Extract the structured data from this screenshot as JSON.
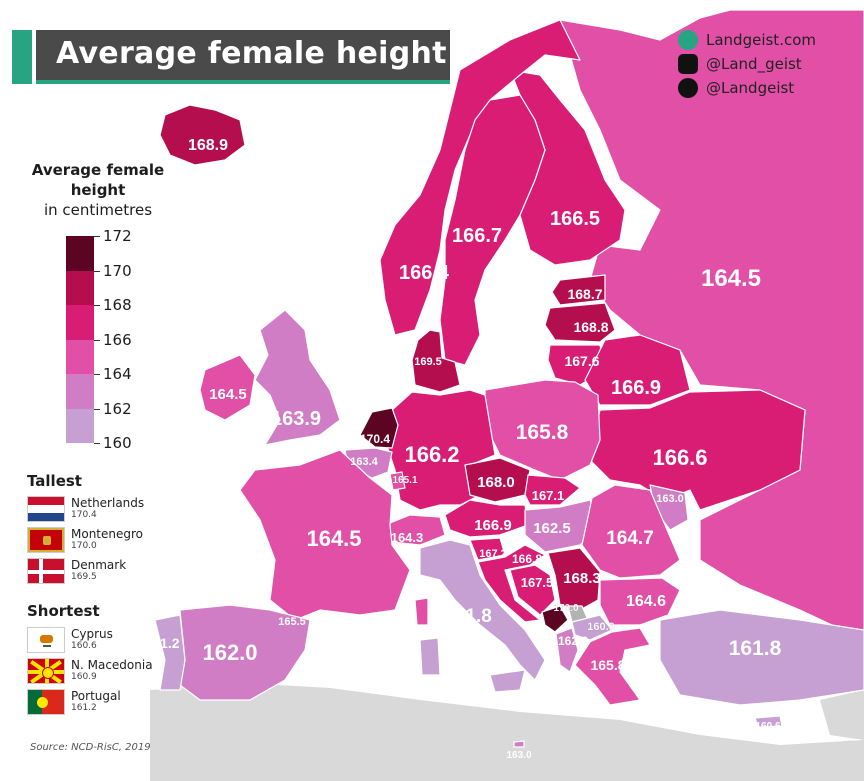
{
  "title": "Average female height",
  "social": [
    {
      "icon": "globe-icon",
      "label": "Landgeist.com"
    },
    {
      "icon": "instagram-icon",
      "label": "@Land_geist"
    },
    {
      "icon": "twitter-icon",
      "label": "@Landgeist"
    }
  ],
  "legend": {
    "title": "Average female height",
    "subtitle": "in centimetres",
    "scale": [
      "172",
      "170",
      "168",
      "166",
      "164",
      "162",
      "160"
    ],
    "colors": [
      "#5c0522",
      "#b50e4e",
      "#d91d75",
      "#e24fa6",
      "#d07dc5",
      "#c69fd3",
      "#e9e3ef"
    ]
  },
  "tallest": {
    "label": "Tallest",
    "items": [
      {
        "country": "Netherlands",
        "value": "170.4",
        "flag": "netherlands"
      },
      {
        "country": "Montenegro",
        "value": "170.0",
        "flag": "montenegro"
      },
      {
        "country": "Denmark",
        "value": "169.5",
        "flag": "denmark"
      }
    ]
  },
  "shortest": {
    "label": "Shortest",
    "items": [
      {
        "country": "Cyprus",
        "value": "160.6",
        "flag": "cyprus"
      },
      {
        "country": "N. Macedonia",
        "value": "160.9",
        "flag": "north-macedonia"
      },
      {
        "country": "Portugal",
        "value": "161.2",
        "flag": "portugal"
      }
    ]
  },
  "source": "Source: NCD-RisC, 2019",
  "colors": {
    "sea": "#ffffff",
    "land_other": "#d9d9d9",
    "title_bg": "#4a4a4a",
    "title_accent": "#27a583",
    "border": "#ffffff"
  },
  "regions": [
    {
      "id": "iceland",
      "label": "168.9",
      "value": 168.9
    },
    {
      "id": "norway",
      "label": "166.4",
      "value": 166.4
    },
    {
      "id": "sweden",
      "label": "166.7",
      "value": 166.7
    },
    {
      "id": "finland",
      "label": "166.5",
      "value": 166.5
    },
    {
      "id": "russia",
      "label": "164.5",
      "value": 164.5
    },
    {
      "id": "estonia",
      "label": "168.7",
      "value": 168.7
    },
    {
      "id": "latvia",
      "label": "168.8",
      "value": 168.8
    },
    {
      "id": "lithuania",
      "label": "167.6",
      "value": 167.6
    },
    {
      "id": "belarus",
      "label": "166.9",
      "value": 166.9
    },
    {
      "id": "denmark",
      "label": "169.5",
      "value": 169.5
    },
    {
      "id": "ireland",
      "label": "164.5",
      "value": 164.5
    },
    {
      "id": "uk",
      "label": "163.9",
      "value": 163.9
    },
    {
      "id": "netherlands",
      "label": "170.4",
      "value": 170.4
    },
    {
      "id": "belgium",
      "label": "163.4",
      "value": 163.4
    },
    {
      "id": "luxembourg",
      "label": "165.1",
      "value": 165.1
    },
    {
      "id": "germany",
      "label": "166.2",
      "value": 166.2
    },
    {
      "id": "poland",
      "label": "165.8",
      "value": 165.8
    },
    {
      "id": "ukraine",
      "label": "166.6",
      "value": 166.6
    },
    {
      "id": "czechia",
      "label": "168.0",
      "value": 168.0
    },
    {
      "id": "slovakia",
      "label": "167.1",
      "value": 167.1
    },
    {
      "id": "moldova",
      "label": "163.0",
      "value": 163.0
    },
    {
      "id": "austria",
      "label": "166.9",
      "value": 166.9
    },
    {
      "id": "hungary",
      "label": "162.5",
      "value": 162.5
    },
    {
      "id": "romania",
      "label": "164.7",
      "value": 164.7
    },
    {
      "id": "switzerland",
      "label": "164.3",
      "value": 164.3
    },
    {
      "id": "france",
      "label": "164.5",
      "value": 164.5
    },
    {
      "id": "slovenia",
      "label": "167.2",
      "value": 167.2
    },
    {
      "id": "croatia",
      "label": "166.8",
      "value": 166.8
    },
    {
      "id": "bosnia",
      "label": "167.5",
      "value": 167.5
    },
    {
      "id": "serbia",
      "label": "168.3",
      "value": 168.3
    },
    {
      "id": "montenegro",
      "label": "170.0",
      "value": 170.0
    },
    {
      "id": "kosovo",
      "label": "",
      "value": null
    },
    {
      "id": "north-macedonia",
      "label": "160.9",
      "value": 160.9
    },
    {
      "id": "bulgaria",
      "label": "164.6",
      "value": 164.6
    },
    {
      "id": "albania",
      "label": "162.2",
      "value": 162.2
    },
    {
      "id": "greece",
      "label": "165.8",
      "value": 165.8
    },
    {
      "id": "italy",
      "label": "161.8",
      "value": 161.8
    },
    {
      "id": "spain",
      "label": "162.0",
      "value": 162.0
    },
    {
      "id": "portugal",
      "label": "161.2",
      "value": 161.2
    },
    {
      "id": "turkey",
      "label": "161.8",
      "value": 161.8
    },
    {
      "id": "cyprus",
      "label": "160.6",
      "value": 160.6
    },
    {
      "id": "malta",
      "label": "163.0",
      "value": 163.0
    },
    {
      "id": "corsica",
      "label": "165.5",
      "value": 165.5
    }
  ]
}
